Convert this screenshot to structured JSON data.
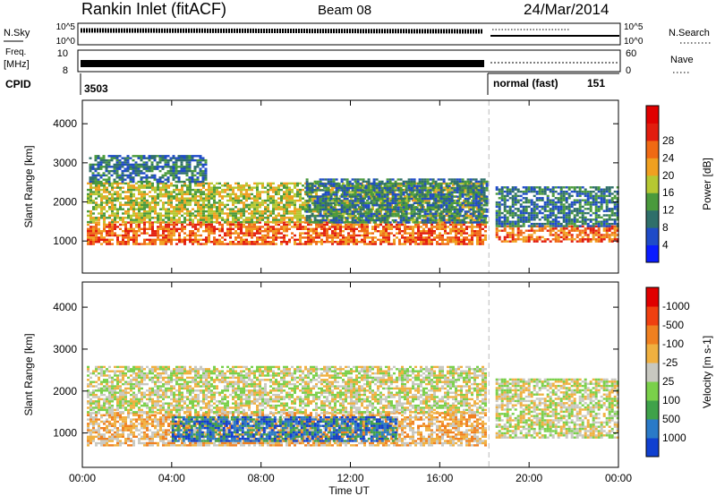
{
  "header": {
    "station": "Rankin Inlet (fitACF)",
    "beam": "Beam 08",
    "date": "24/Mar/2014"
  },
  "status_panels": {
    "nsky_label": "N.Sky",
    "nsky_ticks": [
      "10^5",
      "10^0"
    ],
    "nsearch_label": "N.Search",
    "nsearch_ticks": [
      "10^5",
      "10^0"
    ],
    "freq_label_1": "Freq.",
    "freq_label_2": "[MHz]",
    "freq_ticks": [
      "10",
      "8"
    ],
    "nave_label": "Nave",
    "nave_ticks": [
      "60",
      "0"
    ],
    "cpid_label": "CPID",
    "cpid_1": "3503",
    "cpid_2_name": "normal (fast)",
    "cpid_2_num": "151"
  },
  "x_axis": {
    "label": "Time UT",
    "ticks": [
      "00:00",
      "04:00",
      "08:00",
      "12:00",
      "16:00",
      "20:00",
      "00:00"
    ]
  },
  "chart_data": [
    {
      "type": "heatmap",
      "name": "power",
      "ylabel": "Slant Range [km]",
      "ylim": [
        180,
        4600
      ],
      "xlim_hours": [
        0,
        24
      ],
      "yticks": [
        1000,
        2000,
        3000,
        4000
      ],
      "colorbar_label": "Power [dB]",
      "colorbar_ticks": [
        "4",
        "8",
        "12",
        "16",
        "20",
        "24",
        "28"
      ],
      "colorbar_colors": [
        "#0a1cff",
        "#1f4bc8",
        "#2f6f6a",
        "#4a9a3c",
        "#b6c832",
        "#f0a020",
        "#f06a14",
        "#e21d0e",
        "#e00000"
      ],
      "data_gap_hours": [
        18.1,
        18.5
      ],
      "regions": [
        {
          "t": [
            0.2,
            18.1
          ],
          "r": [
            900,
            1500
          ],
          "level": "28"
        },
        {
          "t": [
            0.2,
            18.1
          ],
          "r": [
            1500,
            2500
          ],
          "level": "20"
        },
        {
          "t": [
            0.3,
            5.5
          ],
          "r": [
            2500,
            3200
          ],
          "level": "12"
        },
        {
          "t": [
            10.0,
            18.1
          ],
          "r": [
            1500,
            2600
          ],
          "level": "12"
        },
        {
          "t": [
            18.5,
            24.0
          ],
          "r": [
            1000,
            1400
          ],
          "level": "28"
        },
        {
          "t": [
            18.5,
            24.0
          ],
          "r": [
            1400,
            2400
          ],
          "level": "12"
        }
      ]
    },
    {
      "type": "heatmap",
      "name": "velocity",
      "ylabel": "Slant Range [km]",
      "ylim": [
        180,
        4600
      ],
      "xlim_hours": [
        0,
        24
      ],
      "yticks": [
        1000,
        2000,
        3000,
        4000
      ],
      "colorbar_label": "Velocity [m s-1]",
      "colorbar_ticks": [
        "1000",
        "500",
        "100",
        "25",
        "-25",
        "-100",
        "-500",
        "-1000"
      ],
      "colorbar_colors": [
        "#1040d0",
        "#2a7ac8",
        "#3fa24a",
        "#7ad04a",
        "#c8c8c0",
        "#f0b040",
        "#f08020",
        "#f04010",
        "#e00000"
      ],
      "data_gap_hours": [
        18.1,
        18.5
      ],
      "regions": [
        {
          "t": [
            0.2,
            18.1
          ],
          "r": [
            700,
            1500
          ],
          "level": "-100"
        },
        {
          "t": [
            0.2,
            18.1
          ],
          "r": [
            1500,
            2600
          ],
          "level": "-25"
        },
        {
          "t": [
            4.0,
            14.0
          ],
          "r": [
            800,
            1400
          ],
          "level": "500"
        },
        {
          "t": [
            18.5,
            24.0
          ],
          "r": [
            900,
            2300
          ],
          "level": "-25"
        }
      ]
    }
  ]
}
